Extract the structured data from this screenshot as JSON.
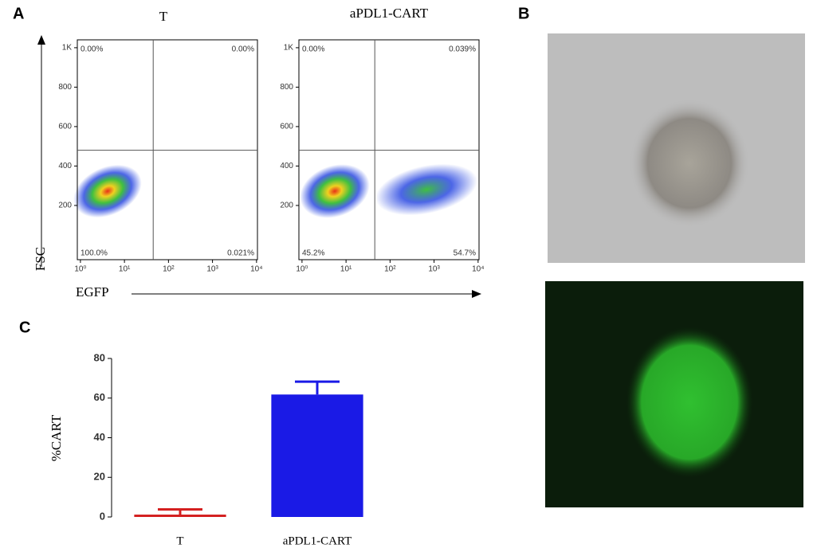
{
  "panel_labels": {
    "a": "A",
    "b": "B",
    "c": "C"
  },
  "flow_axis_labels": {
    "x": "EGFP",
    "y": "FSC"
  },
  "chart_data": [
    {
      "type": "flow",
      "title": "T",
      "x_scale": "log",
      "xlim": [
        0.85,
        10500
      ],
      "ylim": [
        -75,
        1040
      ],
      "xticks": [
        {
          "value": 1,
          "label": "10⁰"
        },
        {
          "value": 10,
          "label": "10¹"
        },
        {
          "value": 100,
          "label": "10²"
        },
        {
          "value": 1000,
          "label": "10³"
        },
        {
          "value": 10000,
          "label": "10⁴"
        }
      ],
      "yticks": [
        200,
        400,
        600,
        800,
        {
          "value": 1000,
          "label": "1K"
        }
      ],
      "gate": {
        "x": 45,
        "y": 480
      },
      "quadrant_values": [
        0,
        0,
        100.0,
        0.021
      ],
      "quadrant_labels": [
        "0.00%",
        "0.00%",
        "100.0%",
        "0.021%"
      ]
    },
    {
      "type": "flow",
      "title": "aPDL1-CART",
      "x_scale": "log",
      "xlim": [
        0.85,
        10500
      ],
      "ylim": [
        -75,
        1040
      ],
      "xticks": [
        {
          "value": 1,
          "label": "10⁰"
        },
        {
          "value": 10,
          "label": "10¹"
        },
        {
          "value": 100,
          "label": "10²"
        },
        {
          "value": 1000,
          "label": "10³"
        },
        {
          "value": 10000,
          "label": "10⁴"
        }
      ],
      "yticks": [
        200,
        400,
        600,
        800,
        {
          "value": 1000,
          "label": "1K"
        }
      ],
      "gate": {
        "x": 45,
        "y": 480
      },
      "quadrant_values": [
        0,
        0.039,
        45.2,
        54.7
      ],
      "quadrant_labels": [
        "0.00%",
        "0.039%",
        "45.2%",
        "54.7%"
      ]
    },
    {
      "type": "bar",
      "ylabel": "%CART",
      "categories": [
        "T",
        "aPDL1-CART"
      ],
      "values": [
        1.2,
        61.8
      ],
      "errors": [
        2.6,
        6.5
      ],
      "colors": [
        "#d42020",
        "#1a1ae6"
      ],
      "ylim": [
        0,
        80
      ],
      "yticks": [
        0,
        20,
        40,
        60,
        80
      ]
    }
  ]
}
